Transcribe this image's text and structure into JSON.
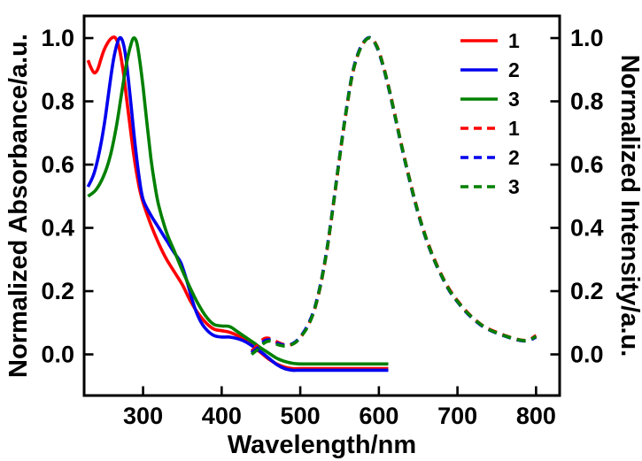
{
  "chart_data": {
    "type": "line",
    "title": "",
    "xlabel": "Wavelength/nm",
    "ylabel_left": "Normalized Absorbance/a.u.",
    "ylabel_right": "Normalized Intensity/a.u.",
    "xlim": [
      225,
      830
    ],
    "ylim": [
      -0.13,
      1.07
    ],
    "grid": false,
    "x_ticks": [
      300,
      400,
      500,
      600,
      700,
      800
    ],
    "x_tick_labels": [
      "300",
      "400",
      "500",
      "600",
      "700",
      "800"
    ],
    "y_ticks": [
      0.0,
      0.2,
      0.4,
      0.6,
      0.8,
      1.0
    ],
    "y_tick_labels": [
      "0.0",
      "0.2",
      "0.4",
      "0.6",
      "0.8",
      "1.0"
    ],
    "colors": {
      "series1": "#ff0000",
      "series2": "#0000ee",
      "series3": "#008000",
      "axis": "#000000"
    },
    "legend": {
      "position": "upper-right-inside",
      "entries": [
        {
          "label": "1",
          "color": "#ff0000",
          "dashed": false
        },
        {
          "label": "2",
          "color": "#0000ee",
          "dashed": false
        },
        {
          "label": "3",
          "color": "#008000",
          "dashed": false
        },
        {
          "label": "1",
          "color": "#ff0000",
          "dashed": true
        },
        {
          "label": "2",
          "color": "#0000ee",
          "dashed": true
        },
        {
          "label": "3",
          "color": "#008000",
          "dashed": true
        }
      ]
    },
    "series": [
      {
        "id": "abs-1",
        "name": "1",
        "axis": "left",
        "dashed": false,
        "color": "#ff0000",
        "x": [
          230,
          234,
          238,
          242,
          246,
          250,
          255,
          260,
          265,
          270,
          275,
          280,
          285,
          290,
          295,
          300,
          310,
          320,
          330,
          340,
          350,
          360,
          370,
          380,
          390,
          400,
          410,
          420,
          430,
          440,
          450,
          460,
          470,
          480,
          490,
          500,
          530,
          560,
          590,
          612
        ],
        "y": [
          0.93,
          0.905,
          0.89,
          0.9,
          0.93,
          0.96,
          0.985,
          1.0,
          1.0,
          0.965,
          0.89,
          0.79,
          0.69,
          0.6,
          0.53,
          0.48,
          0.41,
          0.35,
          0.3,
          0.26,
          0.22,
          0.17,
          0.13,
          0.1,
          0.08,
          0.075,
          0.07,
          0.06,
          0.045,
          0.025,
          0.005,
          -0.015,
          -0.03,
          -0.04,
          -0.045,
          -0.045,
          -0.045,
          -0.045,
          -0.045,
          -0.045
        ]
      },
      {
        "id": "abs-2",
        "name": "2",
        "axis": "left",
        "dashed": false,
        "color": "#0000ee",
        "x": [
          230,
          238,
          246,
          252,
          258,
          263,
          268,
          272,
          276,
          280,
          285,
          290,
          295,
          300,
          310,
          320,
          330,
          340,
          348,
          356,
          364,
          372,
          380,
          390,
          400,
          410,
          420,
          430,
          440,
          450,
          460,
          470,
          480,
          490,
          500,
          530,
          560,
          590,
          612
        ],
        "y": [
          0.53,
          0.575,
          0.66,
          0.75,
          0.86,
          0.94,
          0.99,
          1.0,
          0.97,
          0.9,
          0.78,
          0.66,
          0.56,
          0.49,
          0.44,
          0.4,
          0.36,
          0.32,
          0.29,
          0.23,
          0.16,
          0.11,
          0.08,
          0.06,
          0.055,
          0.055,
          0.05,
          0.04,
          0.025,
          0.008,
          -0.012,
          -0.032,
          -0.045,
          -0.05,
          -0.05,
          -0.05,
          -0.05,
          -0.05,
          -0.05
        ]
      },
      {
        "id": "abs-3",
        "name": "3",
        "axis": "left",
        "dashed": false,
        "color": "#008000",
        "x": [
          230,
          240,
          250,
          258,
          266,
          273,
          279,
          284,
          288,
          292,
          296,
          300,
          305,
          310,
          315,
          320,
          330,
          340,
          350,
          360,
          370,
          380,
          390,
          400,
          410,
          420,
          430,
          440,
          450,
          460,
          470,
          480,
          490,
          500,
          530,
          560,
          590,
          612
        ],
        "y": [
          0.5,
          0.52,
          0.565,
          0.625,
          0.72,
          0.83,
          0.92,
          0.975,
          1.0,
          0.985,
          0.925,
          0.845,
          0.73,
          0.62,
          0.535,
          0.47,
          0.385,
          0.325,
          0.265,
          0.21,
          0.16,
          0.12,
          0.095,
          0.09,
          0.088,
          0.072,
          0.055,
          0.038,
          0.02,
          0.004,
          -0.012,
          -0.022,
          -0.028,
          -0.03,
          -0.03,
          -0.03,
          -0.03,
          -0.03
        ]
      },
      {
        "id": "em-1",
        "name": "1",
        "axis": "right",
        "dashed": true,
        "color": "#ff0000",
        "x": [
          438,
          446,
          454,
          462,
          470,
          478,
          486,
          494,
          502,
          510,
          518,
          526,
          534,
          542,
          550,
          558,
          566,
          574,
          582,
          590,
          598,
          606,
          614,
          622,
          630,
          640,
          650,
          660,
          670,
          680,
          690,
          700,
          710,
          720,
          730,
          740,
          750,
          760,
          770,
          780,
          790,
          800
        ],
        "y": [
          0.01,
          0.03,
          0.05,
          0.05,
          0.04,
          0.032,
          0.03,
          0.038,
          0.06,
          0.092,
          0.14,
          0.22,
          0.33,
          0.47,
          0.62,
          0.76,
          0.88,
          0.952,
          0.99,
          1.0,
          0.972,
          0.91,
          0.83,
          0.74,
          0.65,
          0.545,
          0.45,
          0.37,
          0.305,
          0.25,
          0.205,
          0.17,
          0.14,
          0.115,
          0.095,
          0.08,
          0.07,
          0.06,
          0.052,
          0.046,
          0.045,
          0.06
        ]
      },
      {
        "id": "em-2",
        "name": "2",
        "axis": "right",
        "dashed": true,
        "color": "#0000ee",
        "x": [
          438,
          446,
          454,
          462,
          470,
          478,
          486,
          494,
          502,
          510,
          518,
          526,
          534,
          542,
          550,
          558,
          566,
          574,
          582,
          590,
          598,
          606,
          614,
          622,
          630,
          640,
          650,
          660,
          670,
          680,
          690,
          700,
          710,
          720,
          730,
          740,
          750,
          760,
          770,
          780,
          790,
          800
        ],
        "y": [
          0.005,
          0.022,
          0.042,
          0.046,
          0.036,
          0.03,
          0.03,
          0.04,
          0.062,
          0.095,
          0.145,
          0.225,
          0.335,
          0.475,
          0.625,
          0.765,
          0.885,
          0.955,
          0.992,
          1.0,
          0.968,
          0.905,
          0.825,
          0.735,
          0.645,
          0.54,
          0.445,
          0.365,
          0.3,
          0.246,
          0.2,
          0.166,
          0.136,
          0.112,
          0.092,
          0.078,
          0.067,
          0.058,
          0.05,
          0.044,
          0.043,
          0.055
        ]
      },
      {
        "id": "em-3",
        "name": "3",
        "axis": "right",
        "dashed": true,
        "color": "#008000",
        "x": [
          438,
          446,
          454,
          462,
          470,
          478,
          486,
          494,
          502,
          510,
          518,
          526,
          534,
          542,
          550,
          558,
          566,
          574,
          582,
          590,
          598,
          606,
          614,
          622,
          630,
          640,
          650,
          660,
          670,
          680,
          690,
          700,
          710,
          720,
          730,
          740,
          750,
          760,
          770,
          780,
          790,
          800
        ],
        "y": [
          0.0,
          0.016,
          0.036,
          0.042,
          0.032,
          0.027,
          0.028,
          0.038,
          0.06,
          0.09,
          0.142,
          0.222,
          0.332,
          0.472,
          0.622,
          0.762,
          0.882,
          0.952,
          0.99,
          1.0,
          0.97,
          0.908,
          0.828,
          0.738,
          0.648,
          0.543,
          0.448,
          0.368,
          0.302,
          0.248,
          0.202,
          0.168,
          0.138,
          0.114,
          0.094,
          0.079,
          0.068,
          0.059,
          0.051,
          0.045,
          0.044,
          0.057
        ]
      }
    ]
  }
}
